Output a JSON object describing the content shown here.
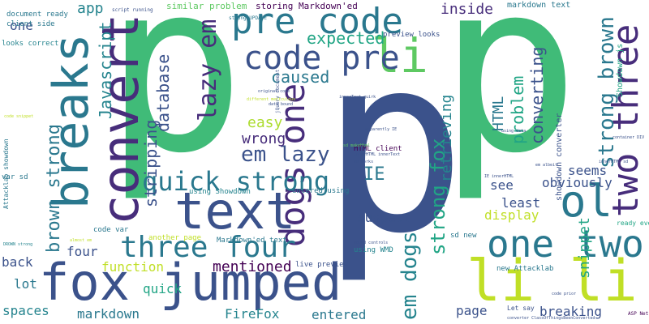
{
  "palette": [
    "#40bb78",
    "#3b528b",
    "#25848e",
    "#440154",
    "#c0df26",
    "#5ec962",
    "#2a788e",
    "#472d7b",
    "#21a585",
    "#addc30"
  ],
  "words": [
    {
      "text": "p",
      "color": "#40bb78"
    },
    {
      "text": "p",
      "color": "#3b528b"
    },
    {
      "text": "p",
      "color": "#40bb78"
    },
    {
      "text": "convert",
      "color": "#472d7b"
    },
    {
      "text": "pre code",
      "color": "#2a788e"
    },
    {
      "text": "fox jumped",
      "color": "#3b528b"
    },
    {
      "text": "breaks",
      "color": "#2a788e"
    },
    {
      "text": "text",
      "color": "#3b528b"
    },
    {
      "text": "li li",
      "color": "#c0df26"
    },
    {
      "text": "li",
      "color": "#5ec962"
    },
    {
      "text": "code pre",
      "color": "#3b528b"
    },
    {
      "text": "dogs one",
      "color": "#472d7b"
    },
    {
      "text": "ol",
      "color": "#2a788e"
    },
    {
      "text": "two three",
      "color": "#472d7b"
    },
    {
      "text": "one two",
      "color": "#2a788e"
    },
    {
      "text": "three four",
      "color": "#2a788e"
    },
    {
      "text": "quick strong",
      "color": "#2a788e"
    },
    {
      "text": "strong brown",
      "color": "#2a788e"
    },
    {
      "text": "brown strong",
      "color": "#2a788e"
    },
    {
      "text": "em dogs",
      "color": "#25848e"
    },
    {
      "text": "strong fox",
      "color": "#21a585"
    },
    {
      "text": "lazy em",
      "color": "#472d7b"
    },
    {
      "text": "em lazy",
      "color": "#3b528b"
    },
    {
      "text": "expected",
      "color": "#21a585"
    },
    {
      "text": "caused",
      "color": "#2a788e"
    },
    {
      "text": "database",
      "color": "#3b528b"
    },
    {
      "text": "Javascript",
      "color": "#25848e"
    },
    {
      "text": "stripping",
      "color": "#3b528b"
    },
    {
      "text": "easy",
      "color": "#addc30"
    },
    {
      "text": "wrong",
      "color": "#472d7b"
    },
    {
      "text": "inside",
      "color": "#472d7b"
    },
    {
      "text": "app",
      "color": "#25848e"
    },
    {
      "text": "one",
      "color": "#3b528b"
    },
    {
      "text": "converting",
      "color": "#3b528b"
    },
    {
      "text": "problem",
      "color": "#21a585"
    },
    {
      "text": "HTML",
      "color": "#2a788e"
    },
    {
      "text": "retrieving",
      "color": "#25848e"
    },
    {
      "text": "IE",
      "color": "#2a788e"
    },
    {
      "text": "seems",
      "color": "#3b528b"
    },
    {
      "text": "obviously",
      "color": "#3b528b"
    },
    {
      "text": "see",
      "color": "#3b528b"
    },
    {
      "text": "least",
      "color": "#3b528b"
    },
    {
      "text": "display",
      "color": "#c0df26"
    },
    {
      "text": "suspect",
      "color": "#3b528b"
    },
    {
      "text": "snippet",
      "color": "#21a585"
    },
    {
      "text": "mentioned",
      "color": "#440154"
    },
    {
      "text": "function",
      "color": "#c0df26"
    },
    {
      "text": "quick",
      "color": "#21a585"
    },
    {
      "text": "four",
      "color": "#3b528b"
    },
    {
      "text": "back",
      "color": "#3b528b"
    },
    {
      "text": "lot",
      "color": "#2a788e"
    },
    {
      "text": "spaces",
      "color": "#25848e"
    },
    {
      "text": "markdown",
      "color": "#2a788e"
    },
    {
      "text": "FireFox",
      "color": "#25848e"
    },
    {
      "text": "entered",
      "color": "#2a788e"
    },
    {
      "text": "page",
      "color": "#3b528b"
    },
    {
      "text": "breaking",
      "color": "#3b528b"
    },
    {
      "text": "Showdown js",
      "color": "#21a585"
    },
    {
      "text": "showdown converter",
      "color": "#3b528b"
    },
    {
      "text": "similar problem",
      "color": "#5ec962"
    },
    {
      "text": "storing Markdown'ed",
      "color": "#440154"
    },
    {
      "text": "markdown text",
      "color": "#2a788e"
    },
    {
      "text": "preview looks",
      "color": "#3b528b"
    },
    {
      "text": "document ready",
      "color": "#2a788e"
    },
    {
      "text": "client side",
      "color": "#2a788e"
    },
    {
      "text": "looks correct",
      "color": "#25848e"
    },
    {
      "text": "Attacklab showdown",
      "color": "#2a788e"
    },
    {
      "text": "var sd",
      "color": "#2a788e"
    },
    {
      "text": "code var",
      "color": "#2a788e"
    },
    {
      "text": "using Showdown",
      "color": "#25848e"
    },
    {
      "text": "entered using",
      "color": "#2a788e"
    },
    {
      "text": "HTML client",
      "color": "#440154"
    },
    {
      "text": "Markdown'ed text",
      "color": "#2a788e"
    },
    {
      "text": "another page",
      "color": "#c0df26"
    },
    {
      "text": "using WMD",
      "color": "#25848e"
    },
    {
      "text": "live preview",
      "color": "#3b528b"
    },
    {
      "text": "sd new",
      "color": "#2a788e"
    },
    {
      "text": "new Attacklab",
      "color": "#2a788e"
    },
    {
      "text": "Let say",
      "color": "#3b528b"
    },
    {
      "text": "ready event",
      "color": "#21a585"
    },
    {
      "text": "ASP Net",
      "color": "#440154"
    },
    {
      "text": "strong UPDATE",
      "color": "#2a788e"
    },
    {
      "text": "script running",
      "color": "#3b528b"
    },
    {
      "text": "jQuery document",
      "color": "#3b528b"
    },
    {
      "text": "original code",
      "color": "#3b528b"
    },
    {
      "text": "data bound",
      "color": "#3b528b"
    },
    {
      "text": "different meticulous",
      "color": "#c0df26"
    },
    {
      "text": "innerText quirk",
      "color": "#3b528b"
    },
    {
      "text": "apparently IE",
      "color": "#3b528b"
    },
    {
      "text": "innerHTML innerText",
      "color": "#3b528b"
    },
    {
      "text": "em works",
      "color": "#3b528b"
    },
    {
      "text": "em albeit",
      "color": "#3b528b"
    },
    {
      "text": "bound controls",
      "color": "#3b528b"
    },
    {
      "text": "IE innerHTML",
      "color": "#3b528b"
    },
    {
      "text": "innerHTML sd",
      "color": "#3b528b"
    },
    {
      "text": "using data",
      "color": "#3b528b"
    },
    {
      "text": "container DIV",
      "color": "#3b528b"
    },
    {
      "text": "code prior",
      "color": "#3b528b"
    },
    {
      "text": "converter ClassOfThingsBeenConverted",
      "color": "#3b528b"
    },
    {
      "text": "almost em",
      "color": "#c0df26"
    },
    {
      "text": "DROWN strong",
      "color": "#25848e"
    },
    {
      "text": "code snippet",
      "color": "#c0df26"
    },
    {
      "text": "sd makeHtml",
      "color": "#5ec962"
    }
  ]
}
